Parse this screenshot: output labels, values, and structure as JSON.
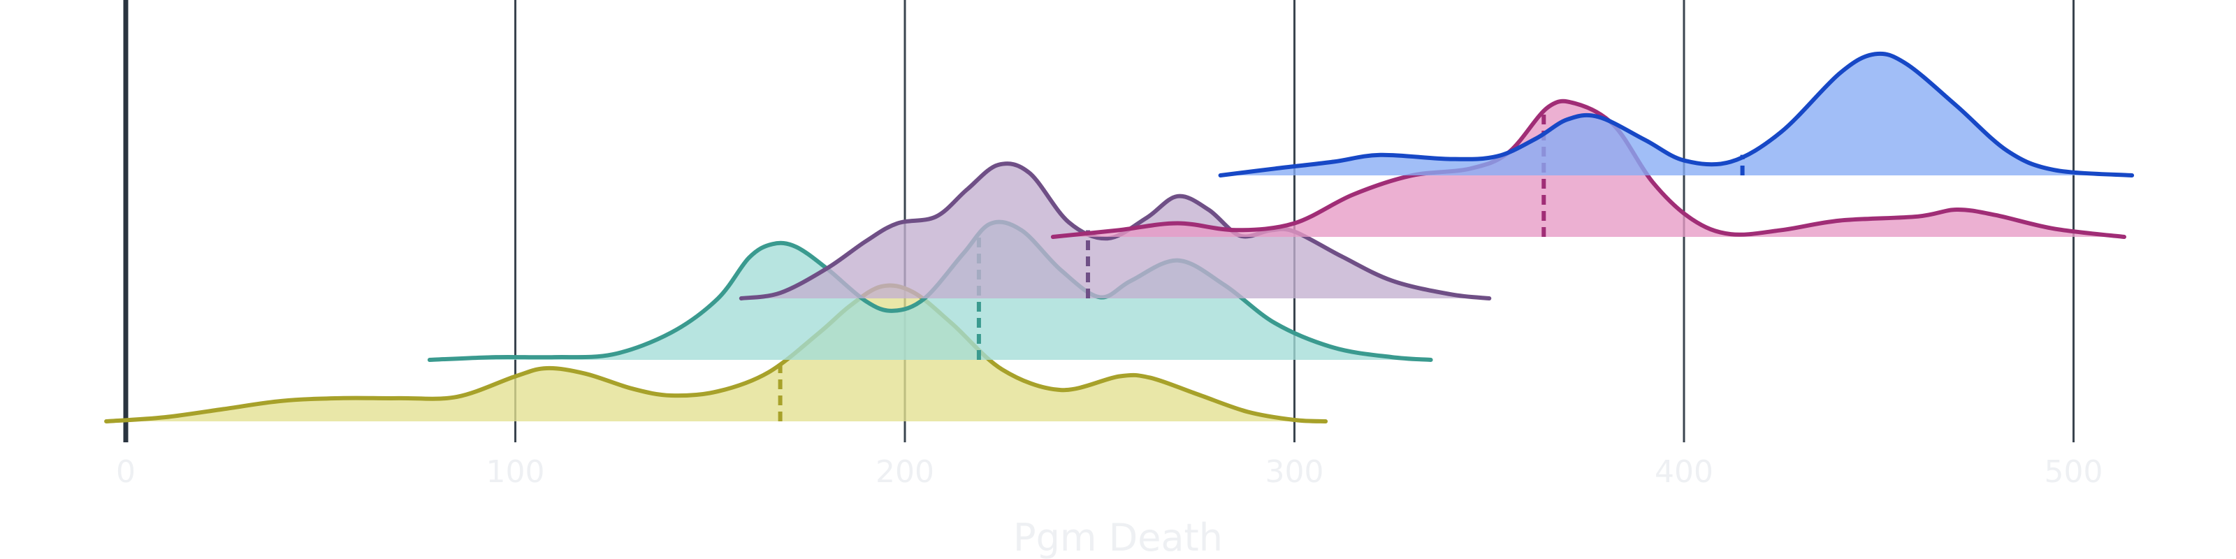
{
  "chart_data": {
    "type": "ridgeline",
    "xlabel": "Pgm Death",
    "xlim": [
      0,
      500
    ],
    "xticks": [
      0,
      100,
      200,
      300,
      400,
      500
    ],
    "grid": true,
    "series": [
      {
        "color": "#a7a12a",
        "fill": "#e3e08f",
        "median": 168,
        "range": [
          -5,
          308
        ],
        "curve": [
          [
            -5,
            0
          ],
          [
            10,
            0.03
          ],
          [
            25,
            0.09
          ],
          [
            40,
            0.15
          ],
          [
            55,
            0.17
          ],
          [
            70,
            0.17
          ],
          [
            85,
            0.18
          ],
          [
            100,
            0.33
          ],
          [
            108,
            0.39
          ],
          [
            118,
            0.35
          ],
          [
            130,
            0.24
          ],
          [
            140,
            0.19
          ],
          [
            152,
            0.22
          ],
          [
            165,
            0.36
          ],
          [
            178,
            0.65
          ],
          [
            186,
            0.85
          ],
          [
            194,
            0.99
          ],
          [
            202,
            0.95
          ],
          [
            212,
            0.72
          ],
          [
            225,
            0.38
          ],
          [
            240,
            0.23
          ],
          [
            255,
            0.33
          ],
          [
            263,
            0.32
          ],
          [
            275,
            0.2
          ],
          [
            288,
            0.07
          ],
          [
            300,
            0.01
          ],
          [
            308,
            0
          ]
        ]
      },
      {
        "color": "#3a9a8f",
        "fill": "#a3ddd7",
        "median": 219,
        "range": [
          78,
          335
        ],
        "curve": [
          [
            78,
            0
          ],
          [
            95,
            0.02
          ],
          [
            110,
            0.02
          ],
          [
            125,
            0.04
          ],
          [
            140,
            0.2
          ],
          [
            152,
            0.45
          ],
          [
            160,
            0.75
          ],
          [
            166,
            0.85
          ],
          [
            172,
            0.83
          ],
          [
            180,
            0.67
          ],
          [
            190,
            0.43
          ],
          [
            197,
            0.36
          ],
          [
            205,
            0.45
          ],
          [
            215,
            0.78
          ],
          [
            222,
            1.0
          ],
          [
            230,
            0.95
          ],
          [
            240,
            0.66
          ],
          [
            250,
            0.46
          ],
          [
            258,
            0.58
          ],
          [
            270,
            0.73
          ],
          [
            282,
            0.55
          ],
          [
            295,
            0.27
          ],
          [
            310,
            0.09
          ],
          [
            325,
            0.02
          ],
          [
            335,
            0
          ]
        ]
      },
      {
        "color": "#6f4f86",
        "fill": "#c3afcf",
        "median": 247,
        "range": [
          158,
          350
        ],
        "curve": [
          [
            158,
            0
          ],
          [
            168,
            0.04
          ],
          [
            180,
            0.22
          ],
          [
            190,
            0.42
          ],
          [
            198,
            0.55
          ],
          [
            208,
            0.6
          ],
          [
            216,
            0.8
          ],
          [
            224,
            0.98
          ],
          [
            232,
            0.92
          ],
          [
            242,
            0.56
          ],
          [
            252,
            0.44
          ],
          [
            262,
            0.59
          ],
          [
            270,
            0.75
          ],
          [
            278,
            0.65
          ],
          [
            286,
            0.46
          ],
          [
            294,
            0.5
          ],
          [
            300,
            0.49
          ],
          [
            312,
            0.31
          ],
          [
            325,
            0.13
          ],
          [
            340,
            0.03
          ],
          [
            350,
            0
          ]
        ]
      },
      {
        "color": "#a02d76",
        "fill": "#e79ac5",
        "median": 364,
        "range": [
          238,
          513
        ],
        "curve": [
          [
            238,
            0
          ],
          [
            255,
            0.05
          ],
          [
            270,
            0.1
          ],
          [
            285,
            0.05
          ],
          [
            300,
            0.1
          ],
          [
            315,
            0.31
          ],
          [
            330,
            0.45
          ],
          [
            345,
            0.5
          ],
          [
            355,
            0.62
          ],
          [
            365,
            0.95
          ],
          [
            372,
            0.98
          ],
          [
            382,
            0.82
          ],
          [
            392,
            0.4
          ],
          [
            402,
            0.13
          ],
          [
            412,
            0.02
          ],
          [
            425,
            0.05
          ],
          [
            440,
            0.12
          ],
          [
            460,
            0.15
          ],
          [
            470,
            0.2
          ],
          [
            480,
            0.16
          ],
          [
            495,
            0.06
          ],
          [
            513,
            0
          ]
        ]
      },
      {
        "color": "#1748c6",
        "fill": "#87acf5",
        "median": 415,
        "range": [
          281,
          515
        ],
        "curve": [
          [
            281,
            0
          ],
          [
            295,
            0.05
          ],
          [
            310,
            0.1
          ],
          [
            322,
            0.15
          ],
          [
            340,
            0.12
          ],
          [
            352,
            0.14
          ],
          [
            362,
            0.27
          ],
          [
            370,
            0.41
          ],
          [
            378,
            0.43
          ],
          [
            390,
            0.26
          ],
          [
            400,
            0.11
          ],
          [
            412,
            0.1
          ],
          [
            425,
            0.32
          ],
          [
            440,
            0.75
          ],
          [
            449,
            0.89
          ],
          [
            457,
            0.82
          ],
          [
            470,
            0.51
          ],
          [
            483,
            0.18
          ],
          [
            495,
            0.04
          ],
          [
            515,
            0
          ]
        ]
      }
    ]
  }
}
